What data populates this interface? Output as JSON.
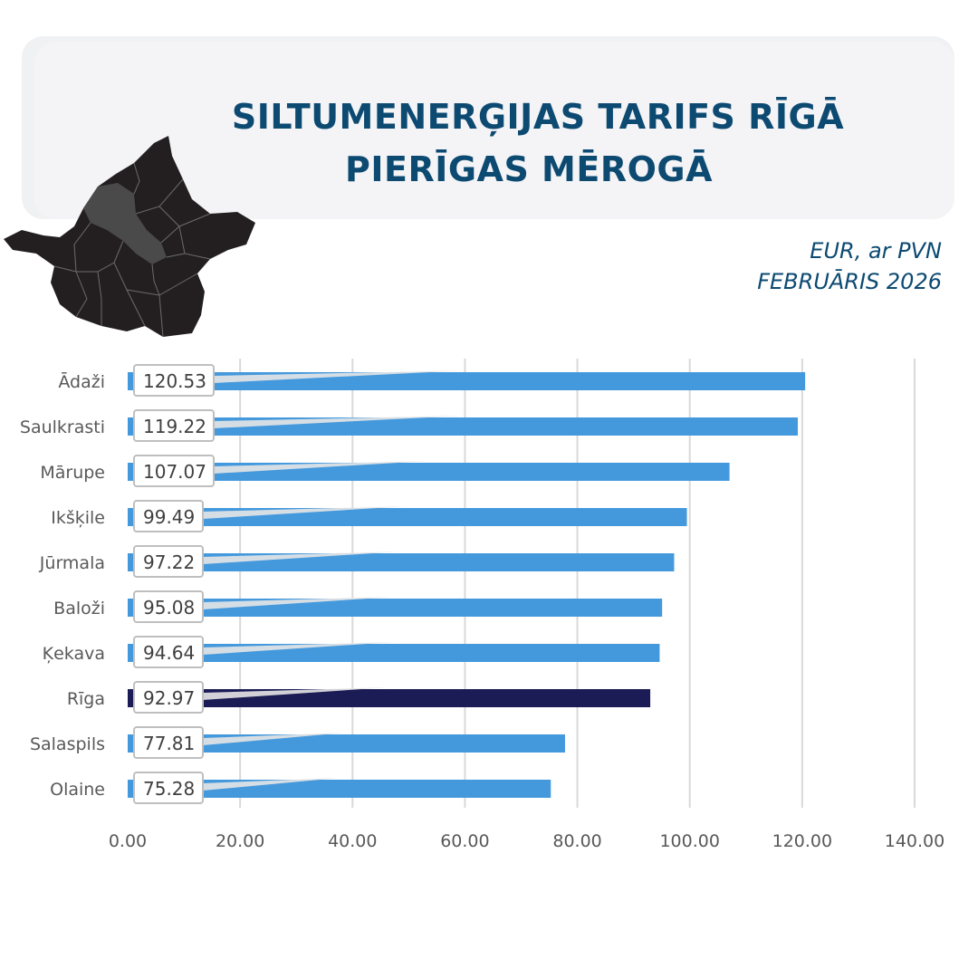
{
  "header": {
    "title_line1": "SILTUMENERĢIJAS TARIFS RĪGĀ",
    "title_line2": "PIERĪGAS MĒROGĀ",
    "unit_line": "EUR, ar PVN",
    "date_line": "FEBRUĀRIS 2026"
  },
  "map": {
    "icon": "pieriga-region-map-icon",
    "fill_color": "#231f20",
    "highlight_color": "#4a4a4a"
  },
  "colors": {
    "bar": "#4499dd",
    "highlight_bar": "#1b1b55",
    "grid": "#d9d9d9"
  },
  "chart_data": {
    "type": "bar",
    "orientation": "horizontal",
    "categories": [
      "Ādaži",
      "Saulkrasti",
      "Mārupe",
      "Ikšķile",
      "Jūrmala",
      "Baloži",
      "Ķekava",
      "Rīga",
      "Salaspils",
      "Olaine"
    ],
    "values": [
      120.53,
      119.22,
      107.07,
      99.49,
      97.22,
      95.08,
      94.64,
      92.97,
      77.81,
      75.28
    ],
    "value_labels": [
      "120.53",
      "119.22",
      "107.07",
      "99.49",
      "97.22",
      "95.08",
      "94.64",
      "92.97",
      "77.81",
      "75.28"
    ],
    "highlight_category": "Rīga",
    "xlim": [
      0,
      140
    ],
    "x_ticks": [
      "0.00",
      "20.00",
      "40.00",
      "60.00",
      "80.00",
      "100.00",
      "120.00",
      "140.00"
    ],
    "grid": true,
    "legend": false
  }
}
